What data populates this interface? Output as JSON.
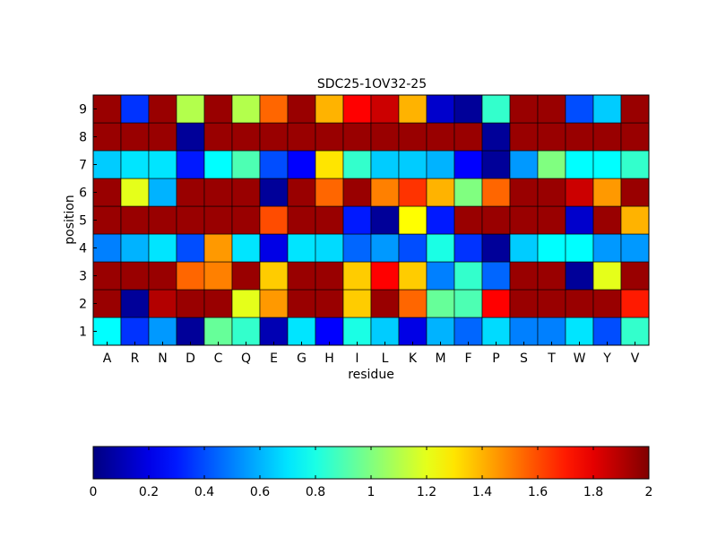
{
  "chart_data": {
    "type": "heatmap",
    "title": "SDC25-1OV32-25",
    "xlabel": "residue",
    "ylabel": "position",
    "x_categories": [
      "A",
      "R",
      "N",
      "D",
      "C",
      "Q",
      "E",
      "G",
      "H",
      "I",
      "L",
      "K",
      "M",
      "F",
      "P",
      "S",
      "T",
      "W",
      "Y",
      "V"
    ],
    "y_categories": [
      "1",
      "2",
      "3",
      "4",
      "5",
      "6",
      "7",
      "8",
      "9"
    ],
    "values": [
      [
        0.75,
        0.35,
        0.55,
        0.05,
        0.95,
        0.85,
        0.1,
        0.7,
        0.25,
        0.8,
        0.65,
        0.2,
        0.6,
        0.45,
        0.68,
        0.5,
        0.5,
        0.7,
        0.4,
        0.85
      ],
      [
        1.95,
        0.05,
        1.9,
        1.95,
        1.95,
        1.2,
        1.45,
        1.95,
        1.95,
        1.35,
        1.95,
        1.55,
        0.95,
        0.9,
        1.75,
        1.95,
        1.95,
        1.95,
        1.95,
        1.7
      ],
      [
        1.95,
        1.95,
        1.95,
        1.55,
        1.5,
        1.95,
        1.35,
        1.95,
        1.95,
        1.35,
        1.75,
        1.35,
        0.5,
        0.85,
        0.45,
        1.95,
        1.95,
        0.05,
        1.2,
        1.95
      ],
      [
        0.5,
        0.6,
        0.7,
        0.4,
        1.45,
        0.7,
        0.2,
        0.7,
        0.68,
        0.45,
        0.55,
        0.4,
        0.8,
        0.35,
        0.05,
        0.65,
        0.75,
        0.75,
        0.55,
        0.55
      ],
      [
        1.95,
        1.95,
        1.95,
        1.95,
        1.95,
        1.95,
        1.6,
        1.95,
        1.95,
        0.3,
        0.05,
        1.25,
        0.3,
        1.95,
        1.95,
        1.95,
        1.95,
        0.15,
        1.95,
        1.4
      ],
      [
        1.95,
        1.2,
        0.6,
        1.95,
        1.95,
        1.95,
        0.05,
        1.95,
        1.55,
        1.95,
        1.5,
        1.65,
        1.4,
        1.0,
        1.55,
        1.95,
        1.95,
        1.85,
        1.45,
        1.95
      ],
      [
        0.65,
        0.7,
        0.7,
        0.3,
        0.75,
        0.9,
        0.4,
        0.25,
        1.3,
        0.85,
        0.65,
        0.65,
        0.6,
        0.25,
        0.05,
        0.55,
        1.0,
        0.75,
        0.75,
        0.85
      ],
      [
        1.95,
        1.95,
        1.95,
        0.05,
        1.95,
        1.95,
        1.95,
        1.95,
        1.95,
        1.95,
        1.95,
        1.95,
        1.95,
        1.95,
        0.05,
        1.95,
        1.95,
        1.95,
        1.95,
        1.95
      ],
      [
        1.95,
        0.35,
        1.95,
        1.1,
        1.95,
        1.1,
        1.55,
        1.95,
        1.4,
        1.75,
        1.85,
        1.4,
        0.15,
        0.05,
        0.85,
        1.95,
        1.95,
        0.4,
        0.65,
        1.95
      ]
    ],
    "colormap": "jet",
    "clim": [
      0,
      2
    ],
    "colorbar": {
      "orientation": "horizontal",
      "ticks": [
        0,
        0.2,
        0.4,
        0.6,
        0.8,
        1,
        1.2,
        1.4,
        1.6,
        1.8,
        2
      ],
      "tick_labels": [
        "0",
        "0.2",
        "0.4",
        "0.6",
        "0.8",
        "1",
        "1.2",
        "1.4",
        "1.6",
        "1.8",
        "2"
      ]
    },
    "grid": false
  }
}
